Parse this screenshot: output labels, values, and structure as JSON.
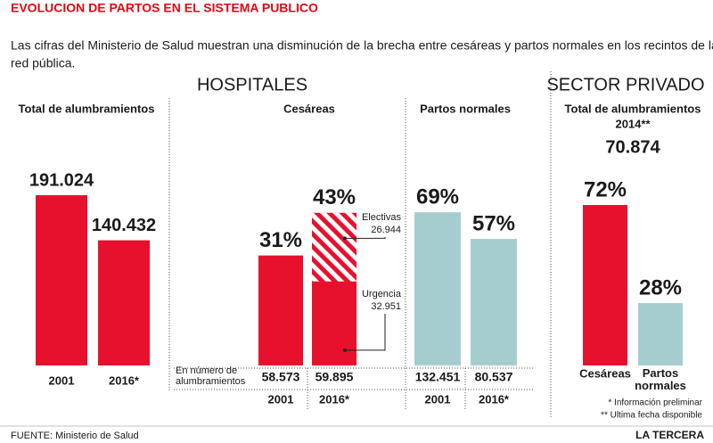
{
  "header": {
    "title": "EVOLUCION DE PARTOS EN EL SISTEMA PUBLICO",
    "subtitle_lines": [
      "Las cifras del Ministerio de Salud muestran una disminución de la brecha entre cesáreas y partos normales en los recintos  de la",
      "red pública."
    ]
  },
  "sections": {
    "hospitals": "HOSPITALES",
    "private": "SECTOR PRIVADO"
  },
  "counts_label_lines": [
    "En número de",
    "alumbramientos"
  ],
  "chart_data": [
    {
      "type": "bar",
      "title": "Total de alumbramientos",
      "categories": [
        "2001",
        "2016*"
      ],
      "values": [
        191024,
        140432
      ],
      "value_labels": [
        "191.024",
        "140.432"
      ],
      "color": "#e8112d"
    },
    {
      "type": "bar",
      "title": "Cesáreas",
      "categories": [
        "2001",
        "2016*"
      ],
      "values": [
        31,
        43
      ],
      "value_labels": [
        "31%",
        "43%"
      ],
      "color": "#e8112d",
      "count_labels": [
        "58.573",
        "59.895"
      ],
      "series": [
        {
          "name": "Electivas",
          "values": [
            null,
            26944
          ],
          "value_labels": [
            null,
            "26.944"
          ],
          "pattern": "stripes"
        },
        {
          "name": "Urgencia",
          "values": [
            null,
            32951
          ],
          "value_labels": [
            null,
            "32.951"
          ],
          "pattern": "solid"
        }
      ]
    },
    {
      "type": "bar",
      "title": "Partos normales",
      "categories": [
        "2001",
        "2016*"
      ],
      "values": [
        69,
        57
      ],
      "value_labels": [
        "69%",
        "57%"
      ],
      "color": "#a6cdcd",
      "count_labels": [
        "132.451",
        "80.537"
      ]
    },
    {
      "type": "bar",
      "title": "Total de alumbramientos",
      "subtitle": "2014**",
      "total_label": "70.874",
      "categories": [
        "Cesáreas",
        "Partos normales"
      ],
      "values": [
        72,
        28
      ],
      "value_labels": [
        "72%",
        "28%"
      ],
      "colors": [
        "#e8112d",
        "#a6cdcd"
      ]
    }
  ],
  "footnotes": [
    "* Información preliminar",
    "** Ultima fecha disponible"
  ],
  "source": "FUENTE: Ministerio de Salud",
  "brand": "LA TERCERA"
}
